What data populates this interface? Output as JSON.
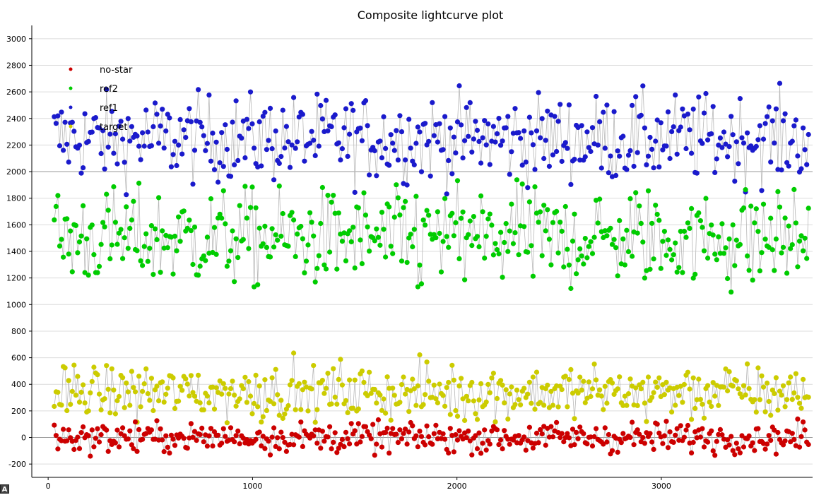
{
  "corner_badge": "A",
  "chart_data": {
    "type": "scatter",
    "title": "Composite lightcurve plot",
    "xlabel": "",
    "ylabel": "",
    "xlim": [
      -80,
      3740
    ],
    "ylim": [
      -300,
      3100
    ],
    "x_ticks": [
      0,
      1000,
      2000,
      3000
    ],
    "y_ticks": [
      -200,
      0,
      200,
      400,
      600,
      800,
      1000,
      1200,
      1400,
      1600,
      1800,
      2000,
      2200,
      2400,
      2600,
      2800,
      3000
    ],
    "grid": "horizontal",
    "legend_position": "top-left",
    "point_count_per_series": 420,
    "x_range": [
      30,
      3720
    ],
    "series": [
      {
        "name": "no-star",
        "color": "#cc0000",
        "mean": 0,
        "spread": 55,
        "min": -190,
        "max": 140
      },
      {
        "name": "ref2",
        "color": "#00cc00",
        "mean": 1500,
        "spread": 180,
        "min": 780,
        "max": 1940
      },
      {
        "name": "ref1",
        "color": "#1a1acc",
        "mean": 2250,
        "spread": 160,
        "min": 1700,
        "max": 2910
      },
      {
        "name": "target",
        "color": "#cccc00",
        "mean": 340,
        "spread": 100,
        "min": 100,
        "max": 690
      }
    ]
  }
}
